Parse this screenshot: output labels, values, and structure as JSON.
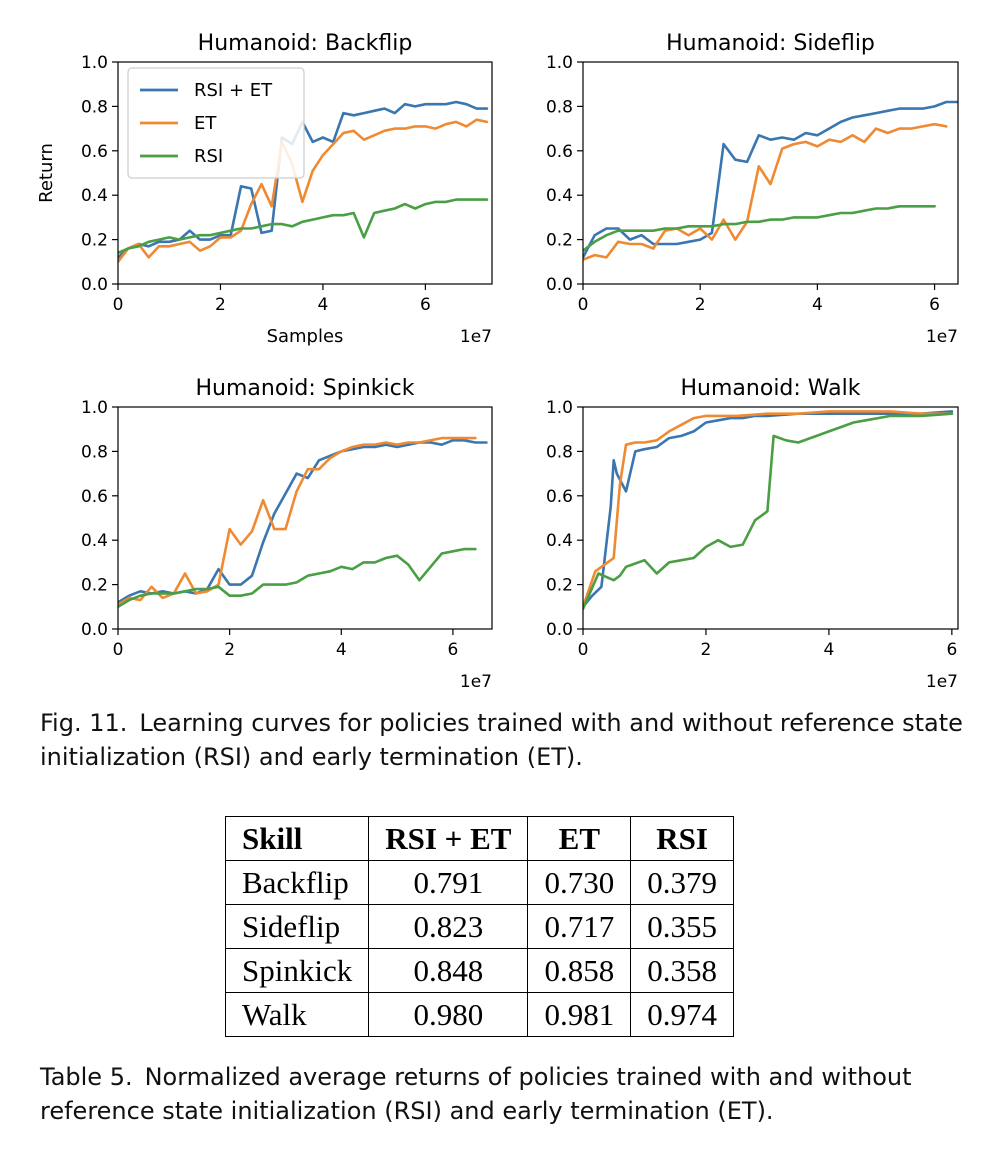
{
  "colors": {
    "rsi_et": "#3a76b0",
    "et": "#ef8a33",
    "rsi": "#4a9e44"
  },
  "x_multiplier": "1e7",
  "chart_data": [
    {
      "type": "line",
      "title": "Humanoid: Backflip",
      "xlabel": "Samples",
      "ylabel": "Return",
      "xlim": [
        0,
        7.3
      ],
      "ylim": [
        0,
        1.0
      ],
      "xticks": [
        "0",
        "2",
        "4",
        "6"
      ],
      "yticks": [
        "0.0",
        "0.2",
        "0.4",
        "0.6",
        "0.8",
        "1.0"
      ],
      "legend": {
        "placement": "top-left",
        "entries": [
          "RSI + ET",
          "ET",
          "RSI"
        ]
      },
      "series": [
        {
          "name": "RSI + ET",
          "x": [
            0,
            0.2,
            0.4,
            0.6,
            0.8,
            1.0,
            1.2,
            1.4,
            1.6,
            1.8,
            2.0,
            2.2,
            2.4,
            2.6,
            2.8,
            3.0,
            3.2,
            3.4,
            3.6,
            3.8,
            4.0,
            4.2,
            4.4,
            4.6,
            4.8,
            5.0,
            5.2,
            5.4,
            5.6,
            5.8,
            6.0,
            6.2,
            6.4,
            6.6,
            6.8,
            7.0,
            7.2
          ],
          "y": [
            0.12,
            0.16,
            0.18,
            0.17,
            0.19,
            0.19,
            0.2,
            0.24,
            0.2,
            0.2,
            0.22,
            0.22,
            0.44,
            0.43,
            0.23,
            0.24,
            0.66,
            0.63,
            0.73,
            0.64,
            0.66,
            0.64,
            0.77,
            0.76,
            0.77,
            0.78,
            0.79,
            0.77,
            0.81,
            0.8,
            0.81,
            0.81,
            0.81,
            0.82,
            0.81,
            0.79,
            0.79
          ]
        },
        {
          "name": "ET",
          "x": [
            0,
            0.2,
            0.4,
            0.6,
            0.8,
            1.0,
            1.2,
            1.4,
            1.6,
            1.8,
            2.0,
            2.2,
            2.4,
            2.6,
            2.8,
            3.0,
            3.2,
            3.4,
            3.6,
            3.8,
            4.0,
            4.2,
            4.4,
            4.6,
            4.8,
            5.0,
            5.2,
            5.4,
            5.6,
            5.8,
            6.0,
            6.2,
            6.4,
            6.6,
            6.8,
            7.0,
            7.2
          ],
          "y": [
            0.1,
            0.16,
            0.18,
            0.12,
            0.17,
            0.17,
            0.18,
            0.19,
            0.15,
            0.17,
            0.21,
            0.21,
            0.24,
            0.36,
            0.45,
            0.35,
            0.64,
            0.54,
            0.37,
            0.51,
            0.58,
            0.63,
            0.68,
            0.69,
            0.65,
            0.67,
            0.69,
            0.7,
            0.7,
            0.71,
            0.71,
            0.7,
            0.72,
            0.73,
            0.71,
            0.74,
            0.73
          ]
        },
        {
          "name": "RSI",
          "x": [
            0,
            0.2,
            0.4,
            0.6,
            0.8,
            1.0,
            1.2,
            1.4,
            1.6,
            1.8,
            2.0,
            2.2,
            2.4,
            2.6,
            2.8,
            3.0,
            3.2,
            3.4,
            3.6,
            3.8,
            4.0,
            4.2,
            4.4,
            4.6,
            4.8,
            5.0,
            5.2,
            5.4,
            5.6,
            5.8,
            6.0,
            6.2,
            6.4,
            6.6,
            6.8,
            7.0,
            7.2
          ],
          "y": [
            0.14,
            0.16,
            0.17,
            0.19,
            0.2,
            0.21,
            0.2,
            0.21,
            0.22,
            0.22,
            0.23,
            0.24,
            0.25,
            0.25,
            0.26,
            0.27,
            0.27,
            0.26,
            0.28,
            0.29,
            0.3,
            0.31,
            0.31,
            0.32,
            0.21,
            0.32,
            0.33,
            0.34,
            0.36,
            0.34,
            0.36,
            0.37,
            0.37,
            0.38,
            0.38,
            0.38,
            0.38
          ]
        }
      ]
    },
    {
      "type": "line",
      "title": "Humanoid: Sideflip",
      "xlim": [
        0,
        6.4
      ],
      "ylim": [
        0,
        1.0
      ],
      "xticks": [
        "0",
        "2",
        "4",
        "6"
      ],
      "yticks": [
        "0.0",
        "0.2",
        "0.4",
        "0.6",
        "0.8",
        "1.0"
      ],
      "series": [
        {
          "name": "RSI + ET",
          "x": [
            0,
            0.2,
            0.4,
            0.6,
            0.8,
            1.0,
            1.2,
            1.4,
            1.6,
            1.8,
            2.0,
            2.2,
            2.4,
            2.6,
            2.8,
            3.0,
            3.2,
            3.4,
            3.6,
            3.8,
            4.0,
            4.2,
            4.4,
            4.6,
            4.8,
            5.0,
            5.2,
            5.4,
            5.6,
            5.8,
            6.0,
            6.2,
            6.4
          ],
          "y": [
            0.12,
            0.22,
            0.25,
            0.25,
            0.2,
            0.22,
            0.18,
            0.18,
            0.18,
            0.19,
            0.2,
            0.23,
            0.63,
            0.56,
            0.55,
            0.67,
            0.65,
            0.66,
            0.65,
            0.68,
            0.67,
            0.7,
            0.73,
            0.75,
            0.76,
            0.77,
            0.78,
            0.79,
            0.79,
            0.79,
            0.8,
            0.82,
            0.82
          ]
        },
        {
          "name": "ET",
          "x": [
            0,
            0.2,
            0.4,
            0.6,
            0.8,
            1.0,
            1.2,
            1.4,
            1.6,
            1.8,
            2.0,
            2.2,
            2.4,
            2.6,
            2.8,
            3.0,
            3.2,
            3.4,
            3.6,
            3.8,
            4.0,
            4.2,
            4.4,
            4.6,
            4.8,
            5.0,
            5.2,
            5.4,
            5.6,
            5.8,
            6.0,
            6.2
          ],
          "y": [
            0.11,
            0.13,
            0.12,
            0.19,
            0.18,
            0.18,
            0.16,
            0.24,
            0.25,
            0.22,
            0.25,
            0.2,
            0.29,
            0.2,
            0.28,
            0.53,
            0.45,
            0.61,
            0.63,
            0.64,
            0.62,
            0.65,
            0.64,
            0.67,
            0.64,
            0.7,
            0.68,
            0.7,
            0.7,
            0.71,
            0.72,
            0.71
          ]
        },
        {
          "name": "RSI",
          "x": [
            0,
            0.2,
            0.4,
            0.6,
            0.8,
            1.0,
            1.2,
            1.4,
            1.6,
            1.8,
            2.0,
            2.2,
            2.4,
            2.6,
            2.8,
            3.0,
            3.2,
            3.4,
            3.6,
            3.8,
            4.0,
            4.2,
            4.4,
            4.6,
            4.8,
            5.0,
            5.2,
            5.4,
            5.6,
            5.8,
            6.0
          ],
          "y": [
            0.15,
            0.19,
            0.22,
            0.24,
            0.24,
            0.24,
            0.24,
            0.25,
            0.25,
            0.26,
            0.26,
            0.26,
            0.27,
            0.27,
            0.28,
            0.28,
            0.29,
            0.29,
            0.3,
            0.3,
            0.3,
            0.31,
            0.32,
            0.32,
            0.33,
            0.34,
            0.34,
            0.35,
            0.35,
            0.35,
            0.35
          ]
        }
      ]
    },
    {
      "type": "line",
      "title": "Humanoid: Spinkick",
      "xlim": [
        0,
        6.7
      ],
      "ylim": [
        0,
        1.0
      ],
      "xticks": [
        "0",
        "2",
        "4",
        "6"
      ],
      "yticks": [
        "0.0",
        "0.2",
        "0.4",
        "0.6",
        "0.8",
        "1.0"
      ],
      "series": [
        {
          "name": "RSI + ET",
          "x": [
            0,
            0.2,
            0.4,
            0.6,
            0.8,
            1.0,
            1.2,
            1.4,
            1.6,
            1.8,
            2.0,
            2.2,
            2.4,
            2.6,
            2.8,
            3.0,
            3.2,
            3.4,
            3.6,
            3.8,
            4.0,
            4.2,
            4.4,
            4.6,
            4.8,
            5.0,
            5.2,
            5.4,
            5.6,
            5.8,
            6.0,
            6.2,
            6.4,
            6.6
          ],
          "y": [
            0.12,
            0.15,
            0.17,
            0.16,
            0.17,
            0.16,
            0.17,
            0.16,
            0.18,
            0.27,
            0.2,
            0.2,
            0.24,
            0.39,
            0.52,
            0.61,
            0.7,
            0.68,
            0.76,
            0.78,
            0.8,
            0.81,
            0.82,
            0.82,
            0.83,
            0.82,
            0.83,
            0.84,
            0.84,
            0.83,
            0.85,
            0.85,
            0.84,
            0.84
          ]
        },
        {
          "name": "ET",
          "x": [
            0,
            0.2,
            0.4,
            0.6,
            0.8,
            1.0,
            1.2,
            1.4,
            1.6,
            1.8,
            2.0,
            2.2,
            2.4,
            2.6,
            2.8,
            3.0,
            3.2,
            3.4,
            3.6,
            3.8,
            4.0,
            4.2,
            4.4,
            4.6,
            4.8,
            5.0,
            5.2,
            5.4,
            5.6,
            5.8,
            6.0,
            6.2,
            6.4
          ],
          "y": [
            0.11,
            0.14,
            0.13,
            0.19,
            0.14,
            0.16,
            0.25,
            0.16,
            0.17,
            0.2,
            0.45,
            0.38,
            0.44,
            0.58,
            0.45,
            0.45,
            0.62,
            0.72,
            0.72,
            0.77,
            0.8,
            0.82,
            0.83,
            0.83,
            0.84,
            0.83,
            0.84,
            0.84,
            0.85,
            0.86,
            0.86,
            0.86,
            0.86
          ]
        },
        {
          "name": "RSI",
          "x": [
            0,
            0.2,
            0.4,
            0.6,
            0.8,
            1.0,
            1.2,
            1.4,
            1.6,
            1.8,
            2.0,
            2.2,
            2.4,
            2.6,
            2.8,
            3.0,
            3.2,
            3.4,
            3.6,
            3.8,
            4.0,
            4.2,
            4.4,
            4.6,
            4.8,
            5.0,
            5.2,
            5.4,
            5.6,
            5.8,
            6.0,
            6.2,
            6.4
          ],
          "y": [
            0.1,
            0.13,
            0.15,
            0.16,
            0.16,
            0.16,
            0.17,
            0.18,
            0.18,
            0.19,
            0.15,
            0.15,
            0.16,
            0.2,
            0.2,
            0.2,
            0.21,
            0.24,
            0.25,
            0.26,
            0.28,
            0.27,
            0.3,
            0.3,
            0.32,
            0.33,
            0.29,
            0.22,
            0.28,
            0.34,
            0.35,
            0.36,
            0.36
          ]
        }
      ]
    },
    {
      "type": "line",
      "title": "Humanoid: Walk",
      "xlim": [
        0,
        6.1
      ],
      "ylim": [
        0,
        1.0
      ],
      "xticks": [
        "0",
        "2",
        "4",
        "6"
      ],
      "yticks": [
        "0.0",
        "0.2",
        "0.4",
        "0.6",
        "0.8",
        "1.0"
      ],
      "series": [
        {
          "name": "RSI + ET",
          "x": [
            0,
            0.15,
            0.3,
            0.45,
            0.5,
            0.55,
            0.7,
            0.85,
            1.0,
            1.2,
            1.4,
            1.6,
            1.8,
            2.0,
            2.2,
            2.4,
            2.6,
            2.8,
            3.0,
            3.5,
            4.0,
            4.5,
            5.0,
            5.5,
            6.0
          ],
          "y": [
            0.1,
            0.15,
            0.19,
            0.55,
            0.76,
            0.7,
            0.62,
            0.8,
            0.81,
            0.82,
            0.86,
            0.87,
            0.89,
            0.93,
            0.94,
            0.95,
            0.95,
            0.96,
            0.96,
            0.97,
            0.97,
            0.97,
            0.97,
            0.97,
            0.98
          ]
        },
        {
          "name": "ET",
          "x": [
            0,
            0.2,
            0.4,
            0.5,
            0.6,
            0.7,
            0.85,
            1.0,
            1.2,
            1.4,
            1.6,
            1.8,
            2.0,
            2.2,
            2.5,
            3.0,
            3.5,
            4.0,
            4.5,
            5.0,
            5.5,
            6.0
          ],
          "y": [
            0.1,
            0.26,
            0.3,
            0.32,
            0.65,
            0.83,
            0.84,
            0.84,
            0.85,
            0.89,
            0.92,
            0.95,
            0.96,
            0.96,
            0.96,
            0.97,
            0.97,
            0.98,
            0.98,
            0.98,
            0.97,
            0.97
          ]
        },
        {
          "name": "RSI",
          "x": [
            0,
            0.25,
            0.5,
            0.6,
            0.7,
            0.8,
            1.0,
            1.2,
            1.4,
            1.6,
            1.8,
            2.0,
            2.2,
            2.4,
            2.6,
            2.8,
            2.9,
            3.0,
            3.1,
            3.3,
            3.5,
            3.8,
            4.0,
            4.2,
            4.4,
            4.6,
            4.8,
            5.0,
            5.5,
            6.0
          ],
          "y": [
            0.09,
            0.25,
            0.22,
            0.24,
            0.28,
            0.29,
            0.31,
            0.25,
            0.3,
            0.31,
            0.32,
            0.37,
            0.4,
            0.37,
            0.38,
            0.49,
            0.51,
            0.53,
            0.87,
            0.85,
            0.84,
            0.87,
            0.89,
            0.91,
            0.93,
            0.94,
            0.95,
            0.96,
            0.96,
            0.97
          ]
        }
      ]
    }
  ],
  "figure_caption": {
    "label": "Fig. 11.",
    "text": "Learning curves for policies trained with and without reference state initialization (RSI) and early termination (ET)."
  },
  "table": {
    "headers": [
      "Skill",
      "RSI + ET",
      "ET",
      "RSI"
    ],
    "rows": [
      [
        "Backflip",
        "0.791",
        "0.730",
        "0.379"
      ],
      [
        "Sideflip",
        "0.823",
        "0.717",
        "0.355"
      ],
      [
        "Spinkick",
        "0.848",
        "0.858",
        "0.358"
      ],
      [
        "Walk",
        "0.980",
        "0.981",
        "0.974"
      ]
    ]
  },
  "table_caption": {
    "label": "Table 5.",
    "text": "Normalized average returns of policies trained with and without reference state initialization (RSI) and early termination (ET)."
  }
}
